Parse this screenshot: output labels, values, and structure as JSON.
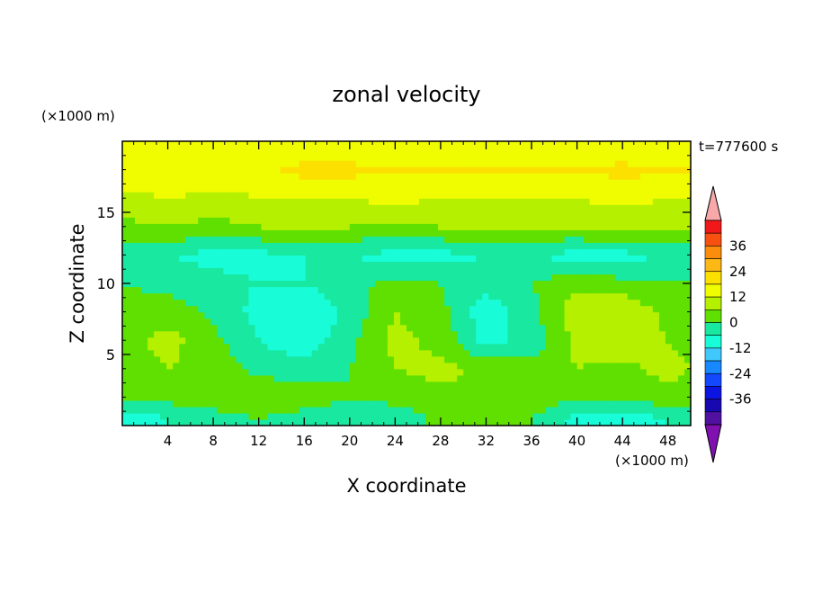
{
  "chart_data": {
    "type": "heatmap",
    "title": "zonal velocity",
    "xlabel": "X coordinate",
    "ylabel": "Z coordinate",
    "x_unit": "(×1000 m)",
    "y_unit": "(×1000 m)",
    "time_label": "t=777600 s",
    "xlim": [
      0,
      50
    ],
    "ylim": [
      0,
      20
    ],
    "x_ticks": [
      4,
      8,
      12,
      16,
      20,
      24,
      28,
      32,
      36,
      40,
      44,
      48
    ],
    "y_ticks": [
      5,
      10,
      15
    ],
    "colorbar": {
      "labels": [
        36,
        24,
        12,
        0,
        -12,
        -24,
        -36
      ],
      "levels": [
        42,
        36,
        30,
        24,
        18,
        12,
        6,
        0,
        -6,
        -12,
        -18,
        -24,
        -30,
        -36,
        -42
      ],
      "colors": [
        "#f01818",
        "#f85010",
        "#fc8c0c",
        "#fcb814",
        "#fce000",
        "#f0fc00",
        "#b4f000",
        "#60e000",
        "#18e8a0",
        "#18fcd8",
        "#40c8fc",
        "#1888ff",
        "#1448fc",
        "#0c14e0",
        "#1808b0",
        "#5010a0"
      ],
      "over_color": "#f8a8a8",
      "under_color": "#8010b0"
    },
    "value_grid": {
      "description": "",
      "x": [
        0,
        4,
        8,
        12,
        16,
        20,
        24,
        28,
        32,
        36,
        40,
        44,
        48,
        50
      ],
      "z": [
        0.5,
        2,
        4,
        6,
        8,
        10,
        12,
        14,
        16,
        18,
        19.5
      ],
      "values": [
        [
          -10,
          -6,
          -3,
          0,
          -3,
          -6,
          -4,
          2,
          4,
          0,
          -8,
          -10,
          -6,
          -4
        ],
        [
          0,
          2,
          4,
          6,
          4,
          0,
          2,
          4,
          6,
          4,
          0,
          2,
          4,
          2
        ],
        [
          2,
          6,
          4,
          -2,
          -4,
          0,
          6,
          8,
          4,
          2,
          6,
          4,
          8,
          6
        ],
        [
          4,
          8,
          2,
          -6,
          -10,
          -2,
          8,
          4,
          -8,
          -4,
          8,
          10,
          6,
          4
        ],
        [
          2,
          4,
          -2,
          -8,
          -12,
          -4,
          6,
          2,
          -10,
          -2,
          10,
          12,
          4,
          2
        ],
        [
          0,
          -2,
          -4,
          -6,
          -6,
          -2,
          2,
          0,
          -4,
          0,
          4,
          2,
          0,
          0
        ],
        [
          -4,
          -6,
          -8,
          -8,
          -6,
          -6,
          -8,
          -8,
          -6,
          -6,
          -8,
          -8,
          -6,
          -6
        ],
        [
          4,
          6,
          4,
          6,
          8,
          6,
          4,
          6,
          8,
          6,
          6,
          8,
          6,
          6
        ],
        [
          10,
          12,
          10,
          12,
          12,
          12,
          14,
          12,
          12,
          12,
          12,
          14,
          12,
          12
        ],
        [
          16,
          18,
          16,
          16,
          20,
          20,
          18,
          18,
          18,
          18,
          18,
          20,
          18,
          18
        ],
        [
          12,
          14,
          12,
          14,
          14,
          14,
          12,
          12,
          14,
          14,
          12,
          14,
          14,
          14
        ]
      ]
    }
  }
}
